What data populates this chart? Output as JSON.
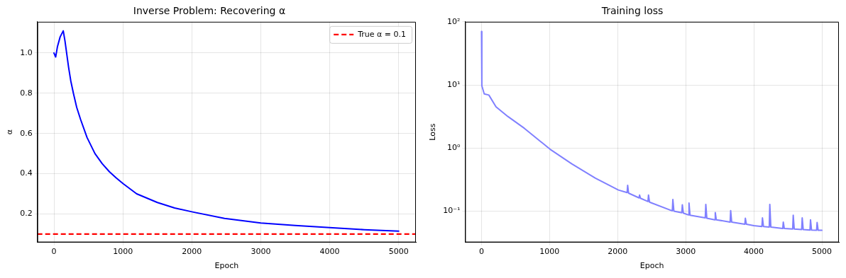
{
  "chart_data": [
    {
      "type": "line",
      "title": "Inverse Problem: Recovering α",
      "xlabel": "Epoch",
      "ylabel": "α",
      "xlim": [
        -240,
        5250
      ],
      "xticks": [
        0,
        1000,
        2000,
        3000,
        4000,
        5000
      ],
      "ylim": [
        0.059,
        1.155
      ],
      "yticks": [
        0.2,
        0.4,
        0.6,
        0.8,
        {
          "value": 1,
          "label": "1.0"
        }
      ],
      "grid": true,
      "legend": "top right",
      "marker": "none",
      "line_style": "solid",
      "x": [
        0,
        25,
        50,
        90,
        135,
        160,
        212,
        245,
        282,
        330,
        386,
        480,
        595,
        700,
        804,
        900,
        1005,
        1200,
        1500,
        1750,
        2011,
        2474,
        3000,
        3500,
        4000,
        4500,
        5000
      ],
      "series": [
        {
          "color": "#0000ff",
          "values": [
            1.0,
            0.98,
            1.03,
            1.08,
            1.11,
            1.06,
            0.93,
            0.86,
            0.8,
            0.73,
            0.67,
            0.58,
            0.5,
            0.45,
            0.41,
            0.38,
            0.35,
            0.3,
            0.257,
            0.23,
            0.21,
            0.178,
            0.155,
            0.143,
            0.132,
            0.122,
            0.115
          ]
        }
      ],
      "ref_lines": [
        {
          "axis": "y",
          "value": 0.1,
          "label": "True α = 0.1",
          "color": "#ff0000",
          "line_style": "dashed"
        }
      ]
    },
    {
      "type": "line",
      "title": "Training loss",
      "xlabel": "Epoch",
      "ylabel": "Loss",
      "log": true,
      "xlim": [
        -240,
        5250
      ],
      "xticks": [
        0,
        1000,
        2000,
        3000,
        4000,
        5000
      ],
      "ylim": [
        0.032,
        100
      ],
      "yticks": [
        {
          "value": 0.1,
          "label": "10⁻¹"
        },
        {
          "value": 1,
          "label": "10⁰"
        },
        {
          "value": 10,
          "label": "10¹"
        },
        {
          "value": 100,
          "label": "10²"
        }
      ],
      "grid": true,
      "marker": "none",
      "line_style": "solid",
      "x": [
        0,
        5,
        40,
        108,
        213,
        387,
        630,
        1005,
        1326,
        1673,
        2011,
        2139,
        2147,
        2160,
        2314,
        2322,
        2335,
        2445,
        2453,
        2468,
        2803,
        2811,
        2826,
        2942,
        2950,
        2965,
        3040,
        3048,
        3063,
        3287,
        3295,
        3310,
        3426,
        3434,
        3449,
        3652,
        3660,
        3675,
        3868,
        3876,
        3891,
        4001,
        4119,
        4127,
        4142,
        4227,
        4235,
        4250,
        4425,
        4433,
        4448,
        4571,
        4579,
        4594,
        4703,
        4711,
        4726,
        4825,
        4833,
        4848,
        4922,
        4930,
        4945,
        5000
      ],
      "series": [
        {
          "color": "#8080ff",
          "values": [
            70,
            9.7,
            7.2,
            6.9,
            4.5,
            3.16,
            2.05,
            0.96,
            0.56,
            0.333,
            0.216,
            0.197,
            0.257,
            0.193,
            0.162,
            0.18,
            0.16,
            0.142,
            0.18,
            0.139,
            0.101,
            0.153,
            0.1,
            0.094,
            0.126,
            0.093,
            0.087,
            0.134,
            0.086,
            0.078,
            0.128,
            0.077,
            0.073,
            0.095,
            0.073,
            0.067,
            0.102,
            0.067,
            0.062,
            0.077,
            0.062,
            0.059,
            0.057,
            0.078,
            0.057,
            0.056,
            0.128,
            0.056,
            0.053,
            0.067,
            0.053,
            0.052,
            0.086,
            0.052,
            0.051,
            0.078,
            0.051,
            0.05,
            0.073,
            0.05,
            0.0497,
            0.066,
            0.0497,
            0.0496
          ]
        }
      ]
    }
  ]
}
